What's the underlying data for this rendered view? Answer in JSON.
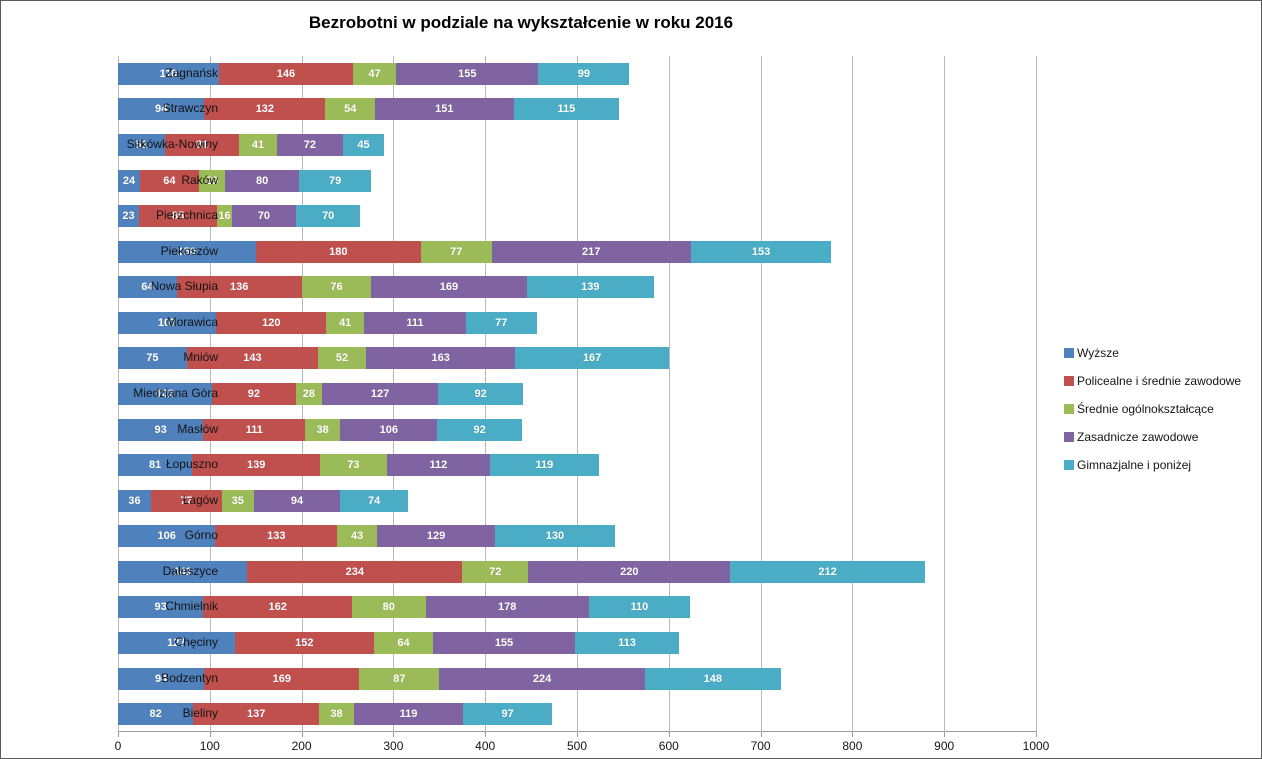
{
  "title": "Bezrobotni w podziale na wykształcenie w roku 2016",
  "chart_data": {
    "type": "bar",
    "orientation": "horizontal",
    "stacked": true,
    "title": "Bezrobotni w podziale na wykształcenie w roku 2016",
    "xlabel": "",
    "ylabel": "",
    "xlim": [
      0,
      1000
    ],
    "x_ticks": [
      0,
      100,
      200,
      300,
      400,
      500,
      600,
      700,
      800,
      900,
      1000
    ],
    "grid": true,
    "legend_position": "right",
    "categories": [
      "Zagnańsk",
      "Strawczyn",
      "Sitkówka-Nowiny",
      "Raków",
      "Pierzchnica",
      "Piekoszów",
      "Nowa Słupia",
      "Morawica",
      "Mniów",
      "Miedziana Góra",
      "Masłów",
      "Łopuszno",
      "Łagów",
      "Górno",
      "Daleszyce",
      "Chmielnik",
      "Chęciny",
      "Bodzentyn",
      "Bieliny"
    ],
    "series": [
      {
        "name": "Wyższe",
        "color": "#4f81bd",
        "values": [
          110,
          94,
          51,
          24,
          23,
          150,
          64,
          107,
          75,
          102,
          93,
          81,
          36,
          106,
          141,
          93,
          127,
          94,
          82
        ]
      },
      {
        "name": "Policealne i średnie zawodowe",
        "color": "#c0504d",
        "values": [
          146,
          132,
          81,
          64,
          85,
          180,
          136,
          120,
          143,
          92,
          111,
          139,
          77,
          133,
          234,
          162,
          152,
          169,
          137
        ]
      },
      {
        "name": "Średnie ogólnokształcące",
        "color": "#9bbb59",
        "values": [
          47,
          54,
          41,
          29,
          16,
          77,
          76,
          41,
          52,
          28,
          38,
          73,
          35,
          43,
          72,
          80,
          64,
          87,
          38
        ]
      },
      {
        "name": "Zasadnicze zawodowe",
        "color": "#8064a2",
        "values": [
          155,
          151,
          72,
          80,
          70,
          217,
          169,
          111,
          163,
          127,
          106,
          112,
          94,
          129,
          220,
          178,
          155,
          224,
          119
        ]
      },
      {
        "name": "Gimnazjalne i poniżej",
        "color": "#4bacc6",
        "values": [
          99,
          115,
          45,
          79,
          70,
          153,
          139,
          77,
          167,
          92,
          92,
          119,
          74,
          130,
          212,
          110,
          113,
          148,
          97
        ]
      }
    ]
  }
}
